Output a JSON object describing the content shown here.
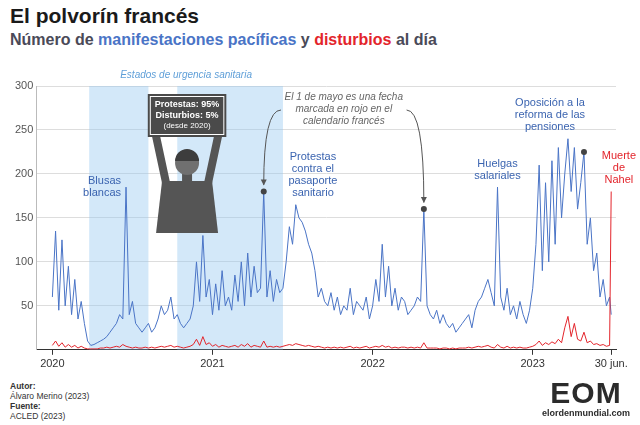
{
  "chart_data": {
    "type": "line",
    "title": "El polvorín francés",
    "subtitle": "Número de manifestaciones pacíficas y disturbios al día",
    "x": [
      2020,
      2020.02,
      2020.04,
      2020.06,
      2020.08,
      2020.1,
      2020.12,
      2020.14,
      2020.16,
      2020.18,
      2020.2,
      2020.22,
      2020.24,
      2020.26,
      2020.28,
      2020.3,
      2020.32,
      2020.34,
      2020.36,
      2020.38,
      2020.4,
      2020.42,
      2020.44,
      2020.46,
      2020.48,
      2020.5,
      2020.52,
      2020.54,
      2020.56,
      2020.58,
      2020.6,
      2020.62,
      2020.64,
      2020.66,
      2020.68,
      2020.7,
      2020.72,
      2020.74,
      2020.76,
      2020.78,
      2020.8,
      2020.82,
      2020.84,
      2020.86,
      2020.88,
      2020.9,
      2020.92,
      2020.94,
      2020.96,
      2020.98,
      2021,
      2021.02,
      2021.04,
      2021.06,
      2021.08,
      2021.1,
      2021.12,
      2021.14,
      2021.16,
      2021.18,
      2021.2,
      2021.22,
      2021.24,
      2021.26,
      2021.28,
      2021.3,
      2021.32,
      2021.34,
      2021.36,
      2021.38,
      2021.4,
      2021.42,
      2021.44,
      2021.46,
      2021.48,
      2021.5,
      2021.52,
      2021.54,
      2021.56,
      2021.58,
      2021.6,
      2021.62,
      2021.64,
      2021.66,
      2021.68,
      2021.7,
      2021.72,
      2021.74,
      2021.76,
      2021.78,
      2021.8,
      2021.82,
      2021.84,
      2021.86,
      2021.88,
      2021.9,
      2021.92,
      2021.94,
      2021.96,
      2021.98,
      2022,
      2022.02,
      2022.04,
      2022.06,
      2022.08,
      2022.1,
      2022.12,
      2022.14,
      2022.16,
      2022.18,
      2022.2,
      2022.22,
      2022.24,
      2022.26,
      2022.28,
      2022.3,
      2022.32,
      2022.34,
      2022.36,
      2022.38,
      2022.4,
      2022.42,
      2022.44,
      2022.46,
      2022.48,
      2022.5,
      2022.52,
      2022.54,
      2022.56,
      2022.58,
      2022.6,
      2022.62,
      2022.64,
      2022.66,
      2022.68,
      2022.7,
      2022.72,
      2022.74,
      2022.76,
      2022.78,
      2022.8,
      2022.82,
      2022.84,
      2022.86,
      2022.88,
      2022.9,
      2022.92,
      2022.94,
      2022.96,
      2022.98,
      2023,
      2023.02,
      2023.04,
      2023.06,
      2023.08,
      2023.1,
      2023.12,
      2023.14,
      2023.16,
      2023.18,
      2023.2,
      2023.22,
      2023.24,
      2023.26,
      2023.28,
      2023.3,
      2023.32,
      2023.34,
      2023.36,
      2023.38,
      2023.4,
      2023.42,
      2023.44,
      2023.46,
      2023.48,
      2023.49
    ],
    "xlim": [
      2019.9,
      2023.52
    ],
    "xticks": [
      2020,
      2021,
      2022,
      2023,
      {
        "value": 2023.49,
        "label": "30 jun."
      }
    ],
    "ylim": [
      0,
      300
    ],
    "yticks": [
      50,
      100,
      150,
      200,
      250,
      300
    ],
    "grid": true,
    "series": [
      {
        "name": "manifestaciones pacíficas",
        "color": "#4a74c6",
        "values": [
          60,
          135,
          45,
          125,
          50,
          95,
          40,
          80,
          35,
          55,
          30,
          10,
          5,
          6,
          8,
          10,
          12,
          15,
          20,
          25,
          30,
          40,
          35,
          185,
          40,
          55,
          30,
          25,
          20,
          25,
          30,
          20,
          25,
          35,
          50,
          40,
          45,
          60,
          35,
          40,
          30,
          25,
          30,
          35,
          50,
          100,
          55,
          130,
          60,
          80,
          40,
          75,
          45,
          90,
          50,
          60,
          45,
          85,
          55,
          100,
          50,
          110,
          60,
          95,
          65,
          70,
          180,
          60,
          90,
          55,
          80,
          65,
          70,
          100,
          140,
          120,
          165,
          150,
          145,
          135,
          120,
          110,
          90,
          60,
          70,
          55,
          50,
          65,
          45,
          60,
          40,
          50,
          45,
          70,
          40,
          55,
          50,
          45,
          60,
          35,
          50,
          80,
          55,
          120,
          60,
          95,
          50,
          70,
          45,
          60,
          55,
          40,
          45,
          50,
          60,
          55,
          160,
          50,
          40,
          35,
          45,
          30,
          40,
          30,
          25,
          30,
          20,
          25,
          30,
          35,
          40,
          25,
          45,
          55,
          60,
          70,
          80,
          65,
          50,
          185,
          60,
          45,
          70,
          40,
          50,
          35,
          55,
          40,
          30,
          45,
          70,
          120,
          210,
          90,
          190,
          100,
          215,
          120,
          230,
          150,
          200,
          240,
          180,
          230,
          160,
          190,
          225,
          120,
          150,
          90,
          110,
          60,
          80,
          50,
          60,
          40
        ]
      },
      {
        "name": "disturbios",
        "color": "#e3242b",
        "values": [
          5,
          10,
          4,
          8,
          3,
          6,
          3,
          5,
          2,
          4,
          2,
          1,
          1,
          1,
          1,
          2,
          2,
          3,
          2,
          3,
          4,
          3,
          6,
          4,
          3,
          2,
          3,
          2,
          2,
          3,
          2,
          3,
          2,
          3,
          4,
          3,
          4,
          5,
          3,
          4,
          3,
          2,
          3,
          4,
          6,
          12,
          5,
          15,
          6,
          8,
          4,
          6,
          3,
          5,
          4,
          3,
          4,
          5,
          3,
          6,
          4,
          7,
          3,
          5,
          4,
          3,
          10,
          3,
          4,
          3,
          4,
          3,
          4,
          5,
          6,
          5,
          7,
          6,
          5,
          4,
          5,
          4,
          3,
          4,
          3,
          2,
          3,
          2,
          3,
          2,
          3,
          2,
          3,
          4,
          2,
          3,
          2,
          3,
          4,
          2,
          3,
          4,
          3,
          5,
          3,
          4,
          2,
          3,
          2,
          3,
          3,
          2,
          3,
          2,
          3,
          2,
          8,
          2,
          2,
          2,
          2,
          1,
          2,
          2,
          1,
          2,
          1,
          2,
          2,
          2,
          3,
          2,
          3,
          4,
          3,
          4,
          5,
          3,
          2,
          6,
          3,
          2,
          4,
          2,
          3,
          2,
          3,
          2,
          2,
          3,
          4,
          6,
          10,
          5,
          8,
          6,
          9,
          7,
          12,
          8,
          25,
          38,
          15,
          30,
          12,
          10,
          20,
          8,
          10,
          6,
          7,
          5,
          6,
          4,
          5,
          180
        ]
      }
    ],
    "shaded_label": "Estados de urgencia sanitaria",
    "shaded_ranges": [
      [
        2020.23,
        2020.6
      ],
      [
        2020.78,
        2021.44
      ]
    ],
    "annotations": [
      {
        "text": "Blusas blancas",
        "x": 2020.46,
        "y": 185,
        "color": "#3b64b0"
      },
      {
        "text": "Protestas contra el pasaporte sanitario",
        "x": 2021.54,
        "y": 150,
        "color": "#3b64b0"
      },
      {
        "text": "Huelgas salariales",
        "x": 2022.78,
        "y": 185,
        "color": "#3b64b0"
      },
      {
        "text": "Oposición a la reforma de las pensiones",
        "x": 2023.22,
        "y": 240,
        "color": "#3b64b0"
      },
      {
        "text": "Muerte de Nahel",
        "x": 2023.49,
        "y": 180,
        "color": "#e3242b"
      }
    ],
    "may_day": {
      "text": "El 1 de mayo es una fecha marcada en rojo en el calendario francés",
      "points": [
        {
          "x": 2021.32,
          "y": 180
        },
        {
          "x": 2022.32,
          "y": 160
        },
        {
          "x": 2023.32,
          "y": 225
        }
      ]
    },
    "sign": [
      "Protestas: 95%",
      "Disturbios: 5%",
      "(desde 2020)"
    ]
  },
  "footer": {
    "author_label": "Autor:",
    "author": "Álvaro Merino (2023)",
    "source_label": "Fuente:",
    "source": "ACLED (2023)"
  },
  "logo": {
    "text": "EOM",
    "site": "elordenmundial.com"
  }
}
